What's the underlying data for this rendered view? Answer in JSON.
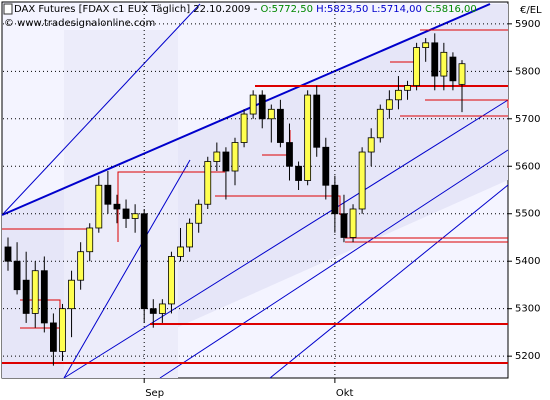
{
  "chart_data": {
    "type": "candlestick",
    "title": "DAX Futures [FDAX c1 EUX  Täglich] 22.10.2009 -",
    "ohlc_labels": [
      "O:5772,50",
      "H:5823,50",
      "L:5714,00",
      "C:5816,00"
    ],
    "source": "© www.tradesignalonline.com",
    "y_label": "€/EL",
    "categories": [
      null,
      null,
      null,
      null,
      null,
      null,
      null,
      null,
      null,
      null,
      null,
      null,
      null,
      null,
      null,
      "Sep",
      null,
      null,
      null,
      null,
      null,
      null,
      null,
      null,
      null,
      null,
      null,
      null,
      null,
      null,
      null,
      null,
      null,
      null,
      null,
      null,
      "Okt",
      null,
      null,
      null,
      null,
      null,
      null,
      null,
      null,
      null,
      null,
      null,
      null,
      null,
      null
    ],
    "open": [
      5430,
      5400,
      5360,
      5290,
      5380,
      5270,
      5210,
      5300,
      5360,
      5420,
      5470,
      5560,
      5520,
      5510,
      5490,
      5500,
      5300,
      5290,
      5310,
      5410,
      5430,
      5480,
      5520,
      5610,
      5630,
      5590,
      5650,
      5710,
      5750,
      5700,
      5720,
      5650,
      5600,
      5570,
      5750,
      5640,
      5560,
      5500,
      5450,
      5510,
      5630,
      5660,
      5720,
      5740,
      5760,
      5770,
      5850,
      5860,
      5790,
      5830,
      5772.5
    ],
    "high": [
      5450,
      5440,
      5420,
      5400,
      5410,
      5290,
      5310,
      5380,
      5440,
      5480,
      5580,
      5590,
      5540,
      5530,
      5520,
      5510,
      5320,
      5320,
      5420,
      5470,
      5490,
      5530,
      5620,
      5650,
      5640,
      5660,
      5720,
      5760,
      5760,
      5730,
      5740,
      5690,
      5610,
      5760,
      5770,
      5660,
      5580,
      5540,
      5520,
      5640,
      5680,
      5730,
      5760,
      5790,
      5780,
      5860,
      5870,
      5880,
      5860,
      5840,
      5823.5
    ],
    "low": [
      5380,
      5330,
      5270,
      5260,
      5250,
      5180,
      5190,
      5240,
      5340,
      5400,
      5460,
      5500,
      5480,
      5470,
      5460,
      5270,
      5260,
      5270,
      5290,
      5400,
      5420,
      5460,
      5510,
      5590,
      5530,
      5560,
      5640,
      5700,
      5680,
      5650,
      5640,
      5570,
      5550,
      5560,
      5620,
      5530,
      5460,
      5440,
      5440,
      5500,
      5600,
      5650,
      5700,
      5720,
      5740,
      5760,
      5820,
      5760,
      5760,
      5760,
      5714
    ],
    "close": [
      5400,
      5340,
      5290,
      5380,
      5270,
      5210,
      5300,
      5360,
      5420,
      5470,
      5560,
      5520,
      5510,
      5490,
      5500,
      5300,
      5290,
      5310,
      5410,
      5430,
      5480,
      5520,
      5610,
      5630,
      5590,
      5650,
      5710,
      5750,
      5700,
      5720,
      5650,
      5600,
      5570,
      5750,
      5640,
      5560,
      5500,
      5450,
      5510,
      5630,
      5660,
      5720,
      5740,
      5760,
      5770,
      5850,
      5860,
      5790,
      5840,
      5780,
      5816
    ],
    "up_color": "#ffff50",
    "down_color": "#000000",
    "ylim": [
      5154,
      5946
    ],
    "yticks": [
      5200,
      5300,
      5400,
      5500,
      5600,
      5700,
      5800,
      5900
    ],
    "grid": true
  }
}
